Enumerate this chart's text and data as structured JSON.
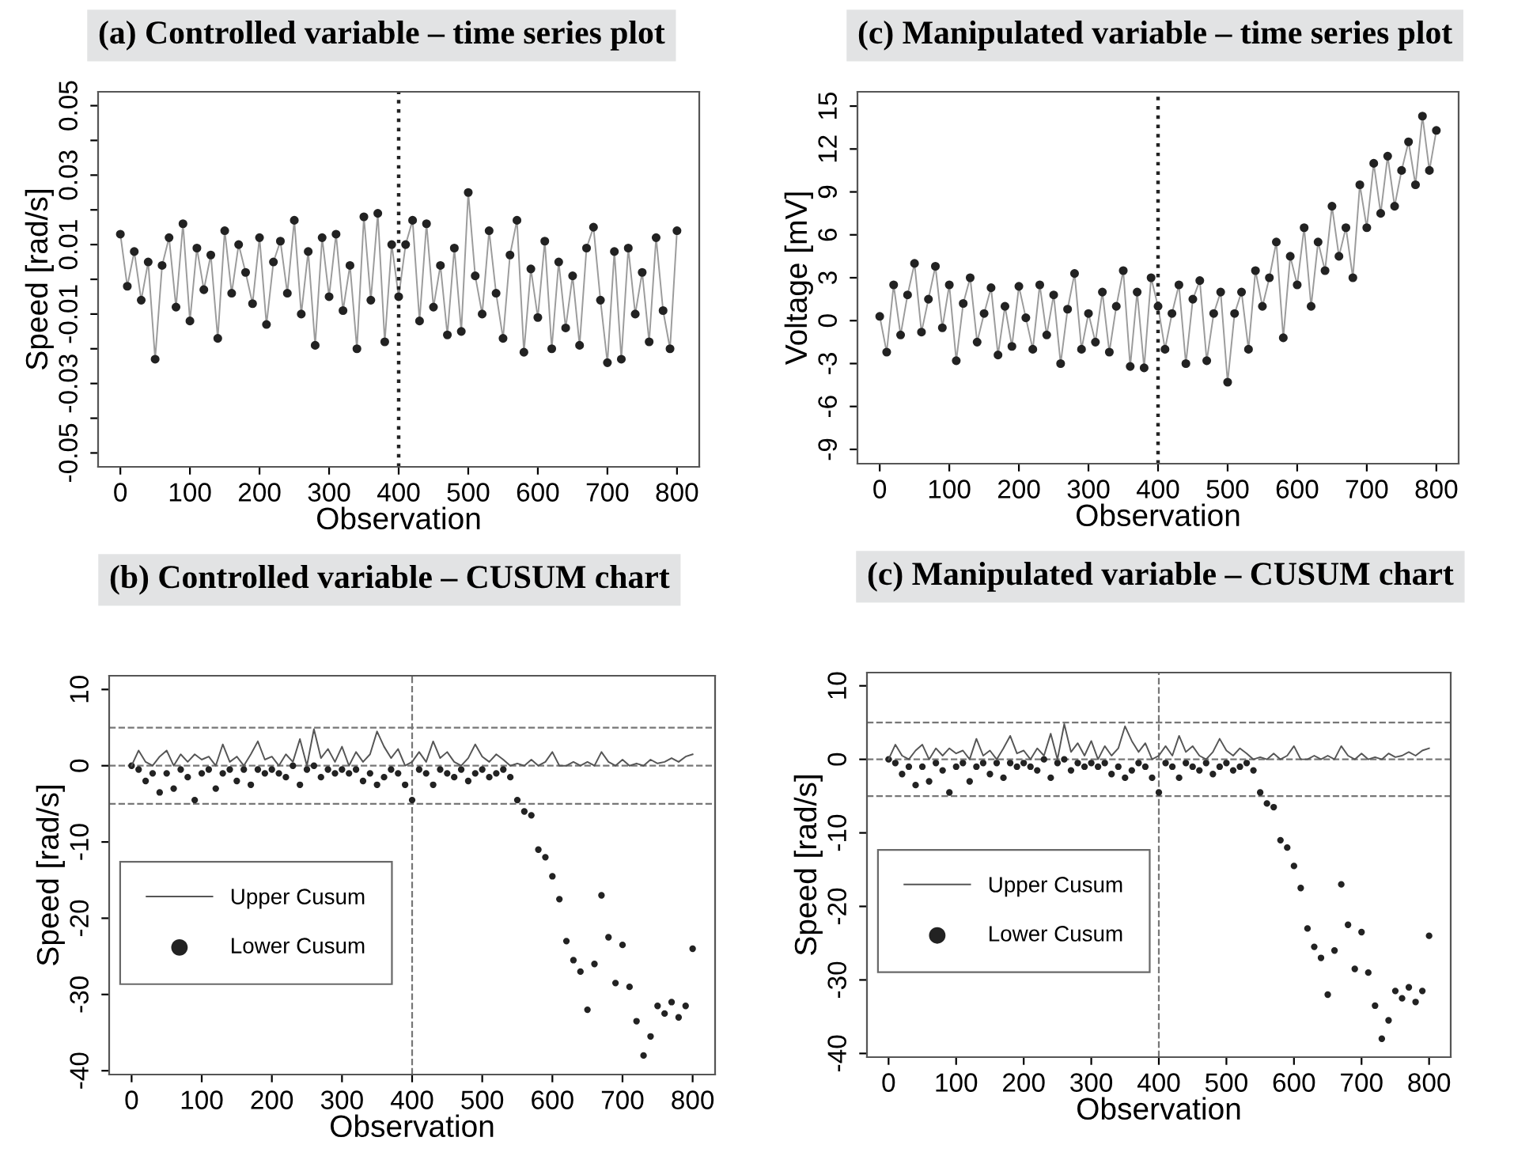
{
  "chart_data": [
    {
      "type": "line",
      "title": "(a) Controlled variable – time series plot",
      "xlabel": "Observation",
      "ylabel": "Speed [rad/s]",
      "x": [
        0,
        10,
        20,
        30,
        40,
        50,
        60,
        70,
        80,
        90,
        100,
        110,
        120,
        130,
        140,
        150,
        160,
        170,
        180,
        190,
        200,
        210,
        220,
        230,
        240,
        250,
        260,
        270,
        280,
        290,
        300,
        310,
        320,
        330,
        340,
        350,
        360,
        370,
        380,
        390,
        400,
        410,
        420,
        430,
        440,
        450,
        460,
        470,
        480,
        490,
        500,
        510,
        520,
        530,
        540,
        550,
        560,
        570,
        580,
        590,
        600,
        610,
        620,
        630,
        640,
        650,
        660,
        670,
        680,
        690,
        700,
        710,
        720,
        730,
        740,
        750,
        760,
        770,
        780,
        790,
        800
      ],
      "series": [
        {
          "color": "#222222",
          "marker": "circle",
          "values": [
            0.013,
            -0.002,
            0.008,
            -0.006,
            0.005,
            -0.023,
            0.004,
            0.012,
            -0.008,
            0.016,
            -0.012,
            0.009,
            -0.003,
            0.007,
            -0.017,
            0.014,
            -0.004,
            0.01,
            0.002,
            -0.007,
            0.012,
            -0.013,
            0.005,
            0.011,
            -0.004,
            0.017,
            -0.01,
            0.008,
            -0.019,
            0.012,
            -0.005,
            0.013,
            -0.009,
            0.004,
            -0.02,
            0.018,
            -0.006,
            0.019,
            -0.018,
            0.01,
            -0.005,
            0.01,
            0.017,
            -0.012,
            0.016,
            -0.008,
            0.004,
            -0.016,
            0.009,
            -0.015,
            0.025,
            0.001,
            -0.01,
            0.014,
            -0.004,
            -0.017,
            0.007,
            0.017,
            -0.021,
            0.003,
            -0.011,
            0.011,
            -0.02,
            0.005,
            -0.014,
            0.001,
            -0.019,
            0.009,
            0.015,
            -0.006,
            -0.024,
            0.008,
            -0.023,
            0.009,
            -0.01,
            0.002,
            -0.018,
            0.012,
            -0.009,
            -0.02,
            0.014
          ]
        }
      ],
      "ref_lines": [
        {
          "axis": "x",
          "value": 400,
          "line_style": "dotted",
          "color": "#222222"
        }
      ],
      "xlim": [
        -32,
        832
      ],
      "xticks": [
        0,
        100,
        200,
        300,
        400,
        500,
        600,
        700,
        800
      ],
      "ylim": [
        -0.054,
        0.054
      ],
      "yticks": [
        -0.05,
        {
          "value": -0.04,
          "label": null
        },
        -0.03,
        {
          "value": -0.02,
          "label": null
        },
        -0.01,
        {
          "value": 0,
          "label": null
        },
        0.01,
        {
          "value": 0.02,
          "label": null
        },
        0.03,
        {
          "value": 0.04,
          "label": null
        },
        0.05
      ]
    },
    {
      "type": "line",
      "title": "(c) Manipulated variable – time series plot",
      "xlabel": "Observation",
      "ylabel": "Voltage [mV]",
      "x": [
        0,
        10,
        20,
        30,
        40,
        50,
        60,
        70,
        80,
        90,
        100,
        110,
        120,
        130,
        140,
        150,
        160,
        170,
        180,
        190,
        200,
        210,
        220,
        230,
        240,
        250,
        260,
        270,
        280,
        290,
        300,
        310,
        320,
        330,
        340,
        350,
        360,
        370,
        380,
        390,
        400,
        410,
        420,
        430,
        440,
        450,
        460,
        470,
        480,
        490,
        500,
        510,
        520,
        530,
        540,
        550,
        560,
        570,
        580,
        590,
        600,
        610,
        620,
        630,
        640,
        650,
        660,
        670,
        680,
        690,
        700,
        710,
        720,
        730,
        740,
        750,
        760,
        770,
        780,
        790,
        800
      ],
      "series": [
        {
          "color": "#222222",
          "marker": "circle",
          "values": [
            0.3,
            -2.2,
            2.5,
            -1.0,
            1.8,
            4.0,
            -0.8,
            1.5,
            3.8,
            -0.5,
            2.5,
            -2.8,
            1.2,
            3.0,
            -1.5,
            0.5,
            2.3,
            -2.4,
            1.0,
            -1.8,
            2.4,
            0.2,
            -2.0,
            2.5,
            -1.0,
            1.8,
            -3.0,
            0.8,
            3.3,
            -2.0,
            0.5,
            -1.5,
            2.0,
            -2.2,
            1.0,
            3.5,
            -3.2,
            2.0,
            -3.3,
            3.0,
            1.0,
            -2.0,
            0.5,
            2.5,
            -3.0,
            1.5,
            2.8,
            -2.8,
            0.5,
            2.0,
            -4.3,
            0.5,
            2.0,
            -2.0,
            3.5,
            1.0,
            3.0,
            5.5,
            -1.2,
            4.5,
            2.5,
            6.5,
            1.0,
            5.5,
            3.5,
            8.0,
            4.5,
            6.5,
            3.0,
            9.5,
            6.5,
            11.0,
            7.5,
            11.5,
            8.0,
            10.5,
            12.5,
            9.5,
            14.3,
            10.5,
            13.3
          ]
        }
      ],
      "ref_lines": [
        {
          "axis": "x",
          "value": 400,
          "line_style": "dotted",
          "color": "#222222"
        }
      ],
      "xlim": [
        -32,
        832
      ],
      "xticks": [
        0,
        100,
        200,
        300,
        400,
        500,
        600,
        700,
        800
      ],
      "ylim": [
        -10,
        16
      ],
      "yticks": [
        -9,
        -6,
        -3,
        0,
        3,
        6,
        9,
        12,
        15
      ]
    },
    {
      "type": "line",
      "title": "(b) Controlled variable – CUSUM chart",
      "xlabel": "Observation",
      "ylabel": "Speed [rad/s]",
      "legend": "left",
      "x": [
        0,
        10,
        20,
        30,
        40,
        50,
        60,
        70,
        80,
        90,
        100,
        110,
        120,
        130,
        140,
        150,
        160,
        170,
        180,
        190,
        200,
        210,
        220,
        230,
        240,
        250,
        260,
        270,
        280,
        290,
        300,
        310,
        320,
        330,
        340,
        350,
        360,
        370,
        380,
        390,
        400,
        410,
        420,
        430,
        440,
        450,
        460,
        470,
        480,
        490,
        500,
        510,
        520,
        530,
        540,
        550,
        560,
        570,
        580,
        590,
        600,
        610,
        620,
        630,
        640,
        650,
        660,
        670,
        680,
        690,
        700,
        710,
        720,
        730,
        740,
        750,
        760,
        770,
        780,
        790,
        800
      ],
      "series": [
        {
          "name": "Upper Cusum",
          "type": "line",
          "color": "#555555",
          "marker": "none",
          "values": [
            0,
            2.0,
            0.5,
            0,
            1.2,
            2.0,
            0,
            1.5,
            0.5,
            1.5,
            0.8,
            1.2,
            0,
            2.8,
            0.5,
            1.2,
            0,
            1.5,
            3.2,
            0.8,
            1.2,
            0,
            1.5,
            0.5,
            3.5,
            0,
            4.8,
            1.0,
            2.2,
            0.5,
            2.5,
            0,
            1.8,
            0.5,
            1.5,
            4.5,
            2.5,
            1.0,
            2.2,
            0,
            0.5,
            1.8,
            0.5,
            3.2,
            1.0,
            1.8,
            0.5,
            0,
            1.0,
            2.8,
            1.2,
            0.5,
            1.5,
            0.8,
            0,
            0.3,
            0,
            0.8,
            0,
            0.5,
            1.8,
            0,
            0,
            0.5,
            0,
            0.5,
            0,
            1.8,
            0.5,
            0,
            0.8,
            0,
            0.3,
            0,
            0.8,
            0.3,
            0.5,
            1.0,
            0.5,
            1.2,
            1.5
          ]
        },
        {
          "name": "Lower Cusum",
          "type": "scatter",
          "color": "#222222",
          "marker": "circle",
          "values": [
            0,
            -0.5,
            -2.0,
            -1.0,
            -3.5,
            -1.0,
            -3.0,
            -0.5,
            -1.5,
            -4.5,
            -1.0,
            -0.5,
            -3.0,
            -1.0,
            -0.5,
            -2.0,
            -0.5,
            -2.5,
            -0.5,
            -1.0,
            -0.5,
            -1.0,
            -1.5,
            0,
            -2.5,
            -0.5,
            0,
            -1.5,
            -0.5,
            -1.0,
            -0.5,
            -1.0,
            -0.5,
            -2.0,
            -1.0,
            -2.5,
            -1.5,
            -0.5,
            -1.0,
            -2.5,
            -4.5,
            -0.5,
            -1.0,
            -2.5,
            -0.5,
            -1.0,
            -1.5,
            -0.5,
            -2.0,
            -1.0,
            -0.5,
            -1.5,
            -1.0,
            -0.5,
            -1.5,
            -4.5,
            -6.0,
            -6.5,
            -11.0,
            -12.0,
            -14.5,
            -17.5,
            -23.0,
            -25.5,
            -27.0,
            -32.0,
            -26.0,
            -17.0,
            -22.5,
            -28.5,
            -23.5,
            -29.0,
            -33.5,
            -38.0,
            -35.5,
            -31.5,
            -32.5,
            -31.0,
            -33.0,
            -31.5,
            -24.0
          ]
        }
      ],
      "ref_lines": [
        {
          "axis": "y",
          "value": 5,
          "line_style": "dashed",
          "color": "#777777"
        },
        {
          "axis": "y",
          "value": 0,
          "line_style": "dashed",
          "color": "#777777"
        },
        {
          "axis": "y",
          "value": -5,
          "line_style": "dashed",
          "color": "#777777"
        },
        {
          "axis": "x",
          "value": 400,
          "line_style": "dashed",
          "color": "#777777"
        }
      ],
      "xlim": [
        -32,
        832
      ],
      "xticks": [
        0,
        100,
        200,
        300,
        400,
        500,
        600,
        700,
        800
      ],
      "ylim": [
        -40.5,
        11.8
      ],
      "yticks": [
        -40,
        -30,
        -20,
        -10,
        0,
        10
      ]
    },
    {
      "type": "line",
      "title": "(c) Manipulated variable – CUSUM chart",
      "xlabel": "Observation",
      "ylabel": "Speed [rad/s]",
      "legend": "left",
      "x": [
        0,
        10,
        20,
        30,
        40,
        50,
        60,
        70,
        80,
        90,
        100,
        110,
        120,
        130,
        140,
        150,
        160,
        170,
        180,
        190,
        200,
        210,
        220,
        230,
        240,
        250,
        260,
        270,
        280,
        290,
        300,
        310,
        320,
        330,
        340,
        350,
        360,
        370,
        380,
        390,
        400,
        410,
        420,
        430,
        440,
        450,
        460,
        470,
        480,
        490,
        500,
        510,
        520,
        530,
        540,
        550,
        560,
        570,
        580,
        590,
        600,
        610,
        620,
        630,
        640,
        650,
        660,
        670,
        680,
        690,
        700,
        710,
        720,
        730,
        740,
        750,
        760,
        770,
        780,
        790,
        800
      ],
      "series": [
        {
          "name": "Upper Cusum",
          "type": "line",
          "color": "#555555",
          "marker": "none",
          "values": [
            0,
            2.0,
            0.5,
            0,
            1.2,
            2.0,
            0,
            1.5,
            0.5,
            1.5,
            0.8,
            1.2,
            0,
            2.8,
            0.5,
            1.2,
            0,
            1.5,
            3.2,
            0.8,
            1.2,
            0,
            1.5,
            0.5,
            3.5,
            0,
            4.8,
            1.0,
            2.2,
            0.5,
            2.5,
            0,
            1.8,
            0.5,
            1.5,
            4.5,
            2.5,
            1.0,
            2.2,
            0,
            0.5,
            1.8,
            0.5,
            3.2,
            1.0,
            1.8,
            0.5,
            0,
            1.0,
            2.8,
            1.2,
            0.5,
            1.5,
            0.8,
            0,
            0.3,
            0,
            0.8,
            0,
            0.5,
            1.8,
            0,
            0,
            0.5,
            0,
            0.5,
            0,
            1.8,
            0.5,
            0,
            0.8,
            0,
            0.3,
            0,
            0.8,
            0.3,
            0.5,
            1.0,
            0.5,
            1.2,
            1.5
          ]
        },
        {
          "name": "Lower Cusum",
          "type": "scatter",
          "color": "#222222",
          "marker": "circle",
          "values": [
            0,
            -0.5,
            -2.0,
            -1.0,
            -3.5,
            -1.0,
            -3.0,
            -0.5,
            -1.5,
            -4.5,
            -1.0,
            -0.5,
            -3.0,
            -1.0,
            -0.5,
            -2.0,
            -0.5,
            -2.5,
            -0.5,
            -1.0,
            -0.5,
            -1.0,
            -1.5,
            0,
            -2.5,
            -0.5,
            0,
            -1.5,
            -0.5,
            -1.0,
            -0.5,
            -1.0,
            -0.5,
            -2.0,
            -1.0,
            -2.5,
            -1.5,
            -0.5,
            -1.0,
            -2.5,
            -4.5,
            -0.5,
            -1.0,
            -2.5,
            -0.5,
            -1.0,
            -1.5,
            -0.5,
            -2.0,
            -1.0,
            -0.5,
            -1.5,
            -1.0,
            -0.5,
            -1.5,
            -4.5,
            -6.0,
            -6.5,
            -11.0,
            -12.0,
            -14.5,
            -17.5,
            -23.0,
            -25.5,
            -27.0,
            -32.0,
            -26.0,
            -17.0,
            -22.5,
            -28.5,
            -23.5,
            -29.0,
            -33.5,
            -38.0,
            -35.5,
            -31.5,
            -32.5,
            -31.0,
            -33.0,
            -31.5,
            -24.0
          ]
        }
      ],
      "ref_lines": [
        {
          "axis": "y",
          "value": 5,
          "line_style": "dashed",
          "color": "#777777"
        },
        {
          "axis": "y",
          "value": 0,
          "line_style": "dashed",
          "color": "#777777"
        },
        {
          "axis": "y",
          "value": -5,
          "line_style": "dashed",
          "color": "#777777"
        },
        {
          "axis": "x",
          "value": 400,
          "line_style": "dashed",
          "color": "#777777"
        }
      ],
      "xlim": [
        -32,
        832
      ],
      "xticks": [
        0,
        100,
        200,
        300,
        400,
        500,
        600,
        700,
        800
      ],
      "ylim": [
        -40.5,
        11.8
      ],
      "yticks": [
        -40,
        -30,
        -20,
        -10,
        0,
        10
      ]
    }
  ]
}
